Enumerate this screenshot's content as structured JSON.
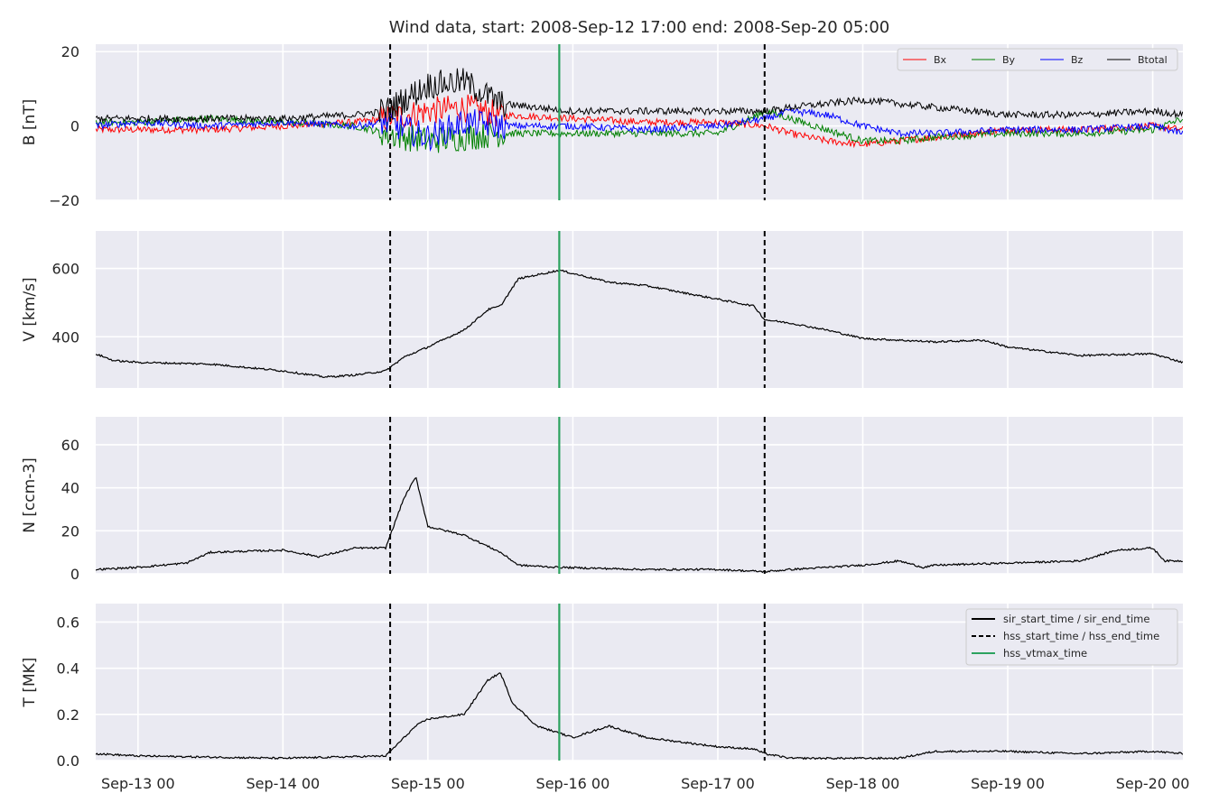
{
  "chart_data": {
    "type": "line",
    "title": "Wind data, start: 2008-Sep-12 17:00  end: 2008-Sep-20 05:00",
    "x_range": [
      "2008-09-12T17:00",
      "2008-09-20T05:00"
    ],
    "x_ticks": [
      {
        "t": "2008-09-13T00:00",
        "label": "Sep-13 00"
      },
      {
        "t": "2008-09-14T00:00",
        "label": "Sep-14 00"
      },
      {
        "t": "2008-09-15T00:00",
        "label": "Sep-15 00"
      },
      {
        "t": "2008-09-16T00:00",
        "label": "Sep-16 00"
      },
      {
        "t": "2008-09-17T00:00",
        "label": "Sep-17 00"
      },
      {
        "t": "2008-09-18T00:00",
        "label": "Sep-18 00"
      },
      {
        "t": "2008-09-19T00:00",
        "label": "Sep-19 00"
      },
      {
        "t": "2008-09-20T00:00",
        "label": "Sep-20 00"
      }
    ],
    "grid": true,
    "event_lines": [
      {
        "name": "hss_start_time / hss_end_time",
        "style": "dashed",
        "color": "#000000",
        "t": "2008-09-14T17:45"
      },
      {
        "name": "hss_vtmax_time",
        "style": "solid",
        "color": "#2ca25f",
        "t": "2008-09-15T21:45"
      },
      {
        "name": "hss_start_time / hss_end_time",
        "style": "dashed",
        "color": "#000000",
        "t": "2008-09-17T07:45"
      }
    ],
    "panels": [
      {
        "ylabel": "B [nT]",
        "ylim": [
          -20,
          22
        ],
        "yticks": [
          -20,
          0,
          20
        ],
        "yticklabels": [
          "−20",
          "0",
          "20"
        ],
        "legend_position": "top-right",
        "legend_layout": "row",
        "series": [
          {
            "name": "Bx",
            "color": "#ff0000",
            "x": [
              "2008-09-12T17:00",
              "2008-09-13T00:00",
              "2008-09-13T12:00",
              "2008-09-14T00:00",
              "2008-09-14T12:00",
              "2008-09-14T17:00",
              "2008-09-15T00:00",
              "2008-09-15T06:00",
              "2008-09-15T12:00",
              "2008-09-16T00:00",
              "2008-09-16T12:00",
              "2008-09-17T00:00",
              "2008-09-17T08:00",
              "2008-09-17T12:00",
              "2008-09-17T18:00",
              "2008-09-18T00:00",
              "2008-09-18T06:00",
              "2008-09-18T12:00",
              "2008-09-19T00:00",
              "2008-09-19T12:00",
              "2008-09-20T00:00",
              "2008-09-20T05:00"
            ],
            "values": [
              -1,
              -1,
              -1,
              0,
              1,
              2,
              4,
              5,
              3,
              2,
              1,
              1,
              0,
              -2,
              -4,
              -5,
              -4,
              -3,
              -1,
              -1,
              0,
              -1
            ]
          },
          {
            "name": "By",
            "color": "#008000",
            "x": [
              "2008-09-12T17:00",
              "2008-09-13T00:00",
              "2008-09-13T12:00",
              "2008-09-14T00:00",
              "2008-09-14T12:00",
              "2008-09-14T17:00",
              "2008-09-15T00:00",
              "2008-09-15T06:00",
              "2008-09-15T12:00",
              "2008-09-16T00:00",
              "2008-09-16T12:00",
              "2008-09-17T00:00",
              "2008-09-17T08:00",
              "2008-09-17T12:00",
              "2008-09-17T18:00",
              "2008-09-18T00:00",
              "2008-09-18T06:00",
              "2008-09-18T12:00",
              "2008-09-19T00:00",
              "2008-09-19T12:00",
              "2008-09-20T00:00",
              "2008-09-20T05:00"
            ],
            "values": [
              1,
              1,
              2,
              1,
              0,
              -2,
              -4,
              -3,
              -2,
              -2,
              -2,
              -2,
              4,
              2,
              -1,
              -4,
              -4,
              -3,
              -2,
              -2,
              -1,
              2
            ]
          },
          {
            "name": "Bz",
            "color": "#0000ff",
            "x": [
              "2008-09-12T17:00",
              "2008-09-13T00:00",
              "2008-09-13T12:00",
              "2008-09-14T00:00",
              "2008-09-14T12:00",
              "2008-09-14T17:00",
              "2008-09-15T00:00",
              "2008-09-15T06:00",
              "2008-09-15T12:00",
              "2008-09-16T00:00",
              "2008-09-16T12:00",
              "2008-09-17T00:00",
              "2008-09-17T08:00",
              "2008-09-17T12:00",
              "2008-09-17T18:00",
              "2008-09-18T00:00",
              "2008-09-18T06:00",
              "2008-09-18T12:00",
              "2008-09-19T00:00",
              "2008-09-19T12:00",
              "2008-09-20T00:00",
              "2008-09-20T05:00"
            ],
            "values": [
              0,
              1,
              0,
              1,
              0,
              1,
              -3,
              1,
              0,
              0,
              -1,
              0,
              2,
              4,
              3,
              0,
              -2,
              -2,
              -1,
              -1,
              0,
              -2
            ]
          },
          {
            "name": "Btotal",
            "color": "#000000",
            "x": [
              "2008-09-12T17:00",
              "2008-09-13T00:00",
              "2008-09-13T12:00",
              "2008-09-14T00:00",
              "2008-09-14T12:00",
              "2008-09-14T17:00",
              "2008-09-15T00:00",
              "2008-09-15T06:00",
              "2008-09-15T12:00",
              "2008-09-16T00:00",
              "2008-09-16T12:00",
              "2008-09-17T00:00",
              "2008-09-17T08:00",
              "2008-09-17T12:00",
              "2008-09-17T18:00",
              "2008-09-18T00:00",
              "2008-09-18T06:00",
              "2008-09-18T12:00",
              "2008-09-19T00:00",
              "2008-09-19T12:00",
              "2008-09-20T00:00",
              "2008-09-20T05:00"
            ],
            "values": [
              2,
              2,
              2,
              2,
              3,
              4,
              11,
              12,
              6,
              4,
              4,
              4,
              4,
              5,
              6,
              7,
              6,
              5,
              3,
              3,
              4,
              3
            ]
          }
        ]
      },
      {
        "ylabel": "V [km/s]",
        "ylim": [
          250,
          710
        ],
        "yticks": [
          400,
          600
        ],
        "yticklabels": [
          "400",
          "600"
        ],
        "series": [
          {
            "name": "",
            "color": "#000000",
            "x": [
              "2008-09-12T17:00",
              "2008-09-12T20:00",
              "2008-09-13T00:00",
              "2008-09-13T12:00",
              "2008-09-14T00:00",
              "2008-09-14T07:00",
              "2008-09-14T12:00",
              "2008-09-14T17:00",
              "2008-09-14T20:00",
              "2008-09-15T00:00",
              "2008-09-15T06:00",
              "2008-09-15T10:00",
              "2008-09-15T12:00",
              "2008-09-15T15:00",
              "2008-09-15T21:45",
              "2008-09-16T06:00",
              "2008-09-16T12:00",
              "2008-09-16T18:00",
              "2008-09-17T00:00",
              "2008-09-17T06:00",
              "2008-09-17T07:45",
              "2008-09-17T12:00",
              "2008-09-17T18:00",
              "2008-09-18T00:00",
              "2008-09-18T12:00",
              "2008-09-18T20:00",
              "2008-09-19T00:00",
              "2008-09-19T12:00",
              "2008-09-20T00:00",
              "2008-09-20T02:00",
              "2008-09-20T05:00"
            ],
            "values": [
              350,
              330,
              325,
              320,
              300,
              282,
              288,
              300,
              340,
              370,
              420,
              480,
              490,
              570,
              595,
              560,
              550,
              530,
              510,
              490,
              450,
              440,
              420,
              395,
              385,
              390,
              370,
              345,
              350,
              340,
              325
            ]
          }
        ]
      },
      {
        "ylabel": "N [ccm-3]",
        "ylim": [
          0,
          73
        ],
        "yticks": [
          0,
          20,
          40,
          60
        ],
        "yticklabels": [
          "0",
          "20",
          "40",
          "60"
        ],
        "series": [
          {
            "name": "",
            "color": "#000000",
            "x": [
              "2008-09-12T17:00",
              "2008-09-13T00:00",
              "2008-09-13T08:00",
              "2008-09-13T12:00",
              "2008-09-14T00:00",
              "2008-09-14T06:00",
              "2008-09-14T12:00",
              "2008-09-14T17:00",
              "2008-09-14T20:00",
              "2008-09-14T22:00",
              "2008-09-15T00:00",
              "2008-09-15T06:00",
              "2008-09-15T12:00",
              "2008-09-15T15:00",
              "2008-09-15T21:45",
              "2008-09-16T12:00",
              "2008-09-17T00:00",
              "2008-09-17T07:45",
              "2008-09-17T12:00",
              "2008-09-18T00:00",
              "2008-09-18T06:00",
              "2008-09-18T10:00",
              "2008-09-18T12:00",
              "2008-09-19T00:00",
              "2008-09-19T12:00",
              "2008-09-19T18:00",
              "2008-09-20T00:00",
              "2008-09-20T02:00",
              "2008-09-20T05:00"
            ],
            "values": [
              2,
              3,
              5,
              10,
              11,
              8,
              12,
              12,
              35,
              45,
              22,
              18,
              10,
              4,
              3,
              2,
              2,
              1,
              2,
              4,
              6,
              3,
              4,
              5,
              6,
              11,
              12,
              6,
              6
            ]
          }
        ]
      },
      {
        "ylabel": "T [MK]",
        "ylim": [
          0,
          0.68
        ],
        "yticks": [
          0,
          0.2,
          0.4,
          0.6
        ],
        "yticklabels": [
          "0.0",
          "0.2",
          "0.4",
          "0.6"
        ],
        "legend_position": "top-right",
        "legend": [
          {
            "label": "sir_start_time / sir_end_time",
            "style": "solid",
            "color": "#000000"
          },
          {
            "label": "hss_start_time / hss_end_time",
            "style": "dashed",
            "color": "#000000"
          },
          {
            "label": "hss_vtmax_time",
            "style": "solid",
            "color": "#2ca25f"
          }
        ],
        "series": [
          {
            "name": "",
            "color": "#000000",
            "x": [
              "2008-09-12T17:00",
              "2008-09-13T00:00",
              "2008-09-14T00:00",
              "2008-09-14T17:00",
              "2008-09-14T22:00",
              "2008-09-15T00:00",
              "2008-09-15T06:00",
              "2008-09-15T10:00",
              "2008-09-15T12:00",
              "2008-09-15T14:00",
              "2008-09-15T18:00",
              "2008-09-16T00:00",
              "2008-09-16T06:00",
              "2008-09-16T12:00",
              "2008-09-16T18:00",
              "2008-09-17T00:00",
              "2008-09-17T06:00",
              "2008-09-17T07:45",
              "2008-09-17T12:00",
              "2008-09-18T00:00",
              "2008-09-18T06:00",
              "2008-09-18T12:00",
              "2008-09-19T00:00",
              "2008-09-19T12:00",
              "2008-09-20T00:00",
              "2008-09-20T05:00"
            ],
            "values": [
              0.03,
              0.02,
              0.01,
              0.02,
              0.15,
              0.18,
              0.2,
              0.35,
              0.38,
              0.25,
              0.15,
              0.1,
              0.15,
              0.1,
              0.08,
              0.06,
              0.05,
              0.03,
              0.01,
              0.01,
              0.01,
              0.04,
              0.04,
              0.03,
              0.04,
              0.03
            ]
          }
        ]
      }
    ]
  }
}
